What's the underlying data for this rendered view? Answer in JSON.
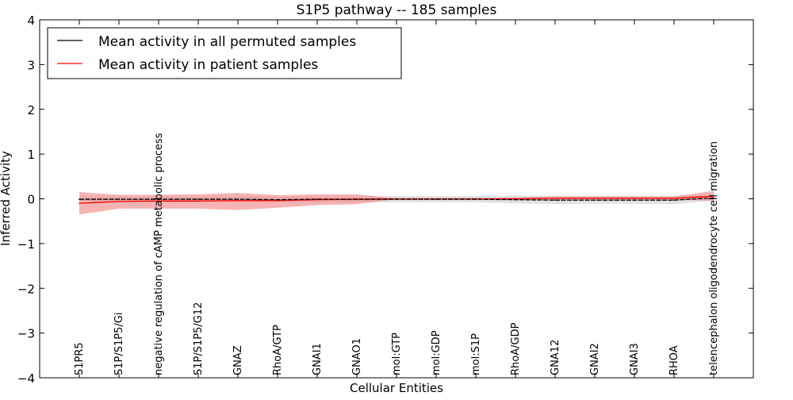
{
  "chart_data": {
    "type": "line",
    "title": "S1P5 pathway -- 185 samples",
    "xlabel": "Cellular Entities",
    "ylabel": "Inferred Activity",
    "ylim": [
      -4,
      4
    ],
    "xlim": [
      0,
      18
    ],
    "yticks": [
      -4,
      -3,
      -2,
      -1,
      0,
      1,
      2,
      3,
      4
    ],
    "ytick_labels": [
      "−4",
      "−3",
      "−2",
      "−1",
      "0",
      "1",
      "2",
      "3",
      "4"
    ],
    "legend_position": "top-left",
    "categories": [
      "S1PR5",
      "S1P/S1P5/Gi",
      "negative regulation of cAMP metabolic process",
      "S1P/S1P5/G12",
      "GNAZ",
      "RhoA/GTP",
      "GNAI1",
      "GNAO1",
      "mol:GTP",
      "mol:GDP",
      "mol:S1P",
      "RhoA/GDP",
      "GNA12",
      "GNAI2",
      "GNAI3",
      "RHOA",
      "telencephalon oligodendrocyte cell migration"
    ],
    "series": [
      {
        "name": "Mean activity in all permuted samples",
        "color": "#000000",
        "band_color": "#d9d9d9",
        "values": [
          -0.01,
          -0.01,
          -0.01,
          -0.01,
          -0.01,
          -0.02,
          -0.01,
          -0.01,
          -0.01,
          -0.01,
          -0.01,
          -0.02,
          -0.03,
          -0.03,
          -0.03,
          -0.03,
          0.02
        ],
        "upper": [
          0.05,
          0.05,
          0.05,
          0.05,
          0.05,
          0.05,
          0.05,
          0.05,
          0.06,
          0.06,
          0.06,
          0.07,
          0.07,
          0.07,
          0.07,
          0.07,
          0.08
        ],
        "lower": [
          -0.07,
          -0.07,
          -0.07,
          -0.07,
          -0.07,
          -0.08,
          -0.07,
          -0.07,
          -0.08,
          -0.08,
          -0.08,
          -0.1,
          -0.12,
          -0.11,
          -0.11,
          -0.12,
          -0.04
        ]
      },
      {
        "name": "Mean activity in patient samples",
        "color": "#ff0000",
        "band_color": "#f08080",
        "values": [
          -0.1,
          -0.06,
          -0.05,
          -0.05,
          -0.04,
          -0.04,
          -0.02,
          -0.01,
          0,
          0,
          0,
          0,
          0.01,
          0.01,
          0.01,
          0.01,
          0.06
        ],
        "upper": [
          0.15,
          0.09,
          0.09,
          0.1,
          0.13,
          0.08,
          0.1,
          0.1,
          0.01,
          0.01,
          0.01,
          0.03,
          0.05,
          0.05,
          0.05,
          0.05,
          0.18
        ],
        "lower": [
          -0.35,
          -0.22,
          -0.22,
          -0.22,
          -0.25,
          -0.2,
          -0.14,
          -0.12,
          -0.01,
          -0.01,
          -0.01,
          -0.01,
          -0.01,
          -0.01,
          -0.01,
          -0.01,
          -0.05
        ]
      }
    ]
  }
}
